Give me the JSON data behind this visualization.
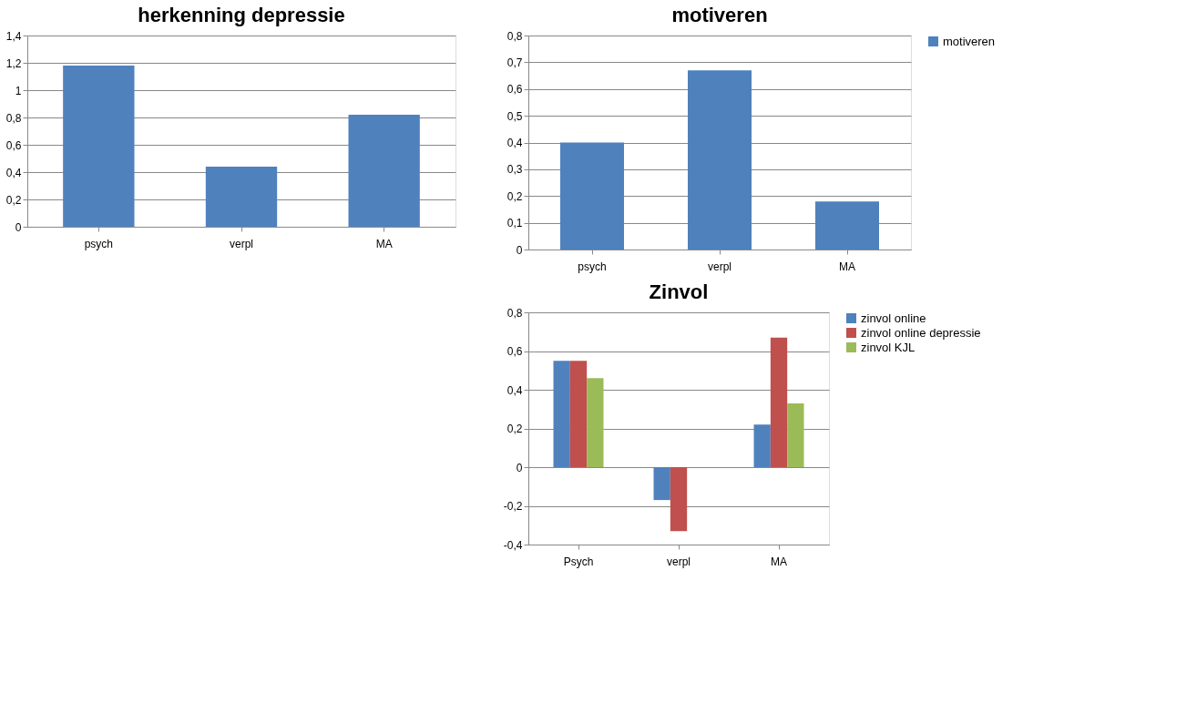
{
  "chart_data": [
    {
      "type": "bar",
      "title": "herkenning depressie",
      "categories": [
        "psych",
        "verpl",
        "MA"
      ],
      "values": [
        1.18,
        0.44,
        0.82
      ],
      "color": "#4f81bd",
      "ylim": [
        0,
        1.4
      ],
      "yticks": [
        {
          "value": 0,
          "label": "0"
        },
        {
          "value": 0.2,
          "label": "0,2"
        },
        {
          "value": 0.4,
          "label": "0,4"
        },
        {
          "value": 0.6,
          "label": "0,6"
        },
        {
          "value": 0.8,
          "label": "0,8"
        },
        {
          "value": 1,
          "label": "1"
        },
        {
          "value": 1.2,
          "label": "1,2"
        },
        {
          "value": 1.4,
          "label": "1,4"
        }
      ],
      "grid": "y"
    },
    {
      "type": "bar",
      "title": "motiveren",
      "categories": [
        "psych",
        "verpl",
        "MA"
      ],
      "series": [
        {
          "name": "motiveren",
          "color": "#4f81bd",
          "values": [
            0.4,
            0.67,
            0.18
          ]
        }
      ],
      "ylim": [
        0,
        0.8
      ],
      "yticks": [
        {
          "value": 0,
          "label": "0"
        },
        {
          "value": 0.1,
          "label": "0,1"
        },
        {
          "value": 0.2,
          "label": "0,2"
        },
        {
          "value": 0.3,
          "label": "0,3"
        },
        {
          "value": 0.4,
          "label": "0,4"
        },
        {
          "value": 0.5,
          "label": "0,5"
        },
        {
          "value": 0.6,
          "label": "0,6"
        },
        {
          "value": 0.7,
          "label": "0,7"
        },
        {
          "value": 0.8,
          "label": "0,8"
        }
      ],
      "grid": "y",
      "legend": "right"
    },
    {
      "type": "bar",
      "title": "Zinvol",
      "categories": [
        "Psych",
        "verpl",
        "MA"
      ],
      "series": [
        {
          "name": "zinvol online",
          "color": "#4f81bd",
          "values": [
            0.55,
            -0.17,
            0.22
          ]
        },
        {
          "name": "zinvol online depressie",
          "color": "#c0504d",
          "values": [
            0.55,
            -0.33,
            0.67
          ]
        },
        {
          "name": "zinvol KJL",
          "color": "#9bbb59",
          "values": [
            0.46,
            null,
            0.33
          ]
        }
      ],
      "ylim": [
        -0.4,
        0.8
      ],
      "yticks": [
        {
          "value": -0.4,
          "label": "-0,4"
        },
        {
          "value": -0.2,
          "label": "-0,2"
        },
        {
          "value": 0,
          "label": "0"
        },
        {
          "value": 0.2,
          "label": "0,2"
        },
        {
          "value": 0.4,
          "label": "0,4"
        },
        {
          "value": 0.6,
          "label": "0,6"
        },
        {
          "value": 0.8,
          "label": "0,8"
        }
      ],
      "grid": "y",
      "legend": "right"
    }
  ]
}
